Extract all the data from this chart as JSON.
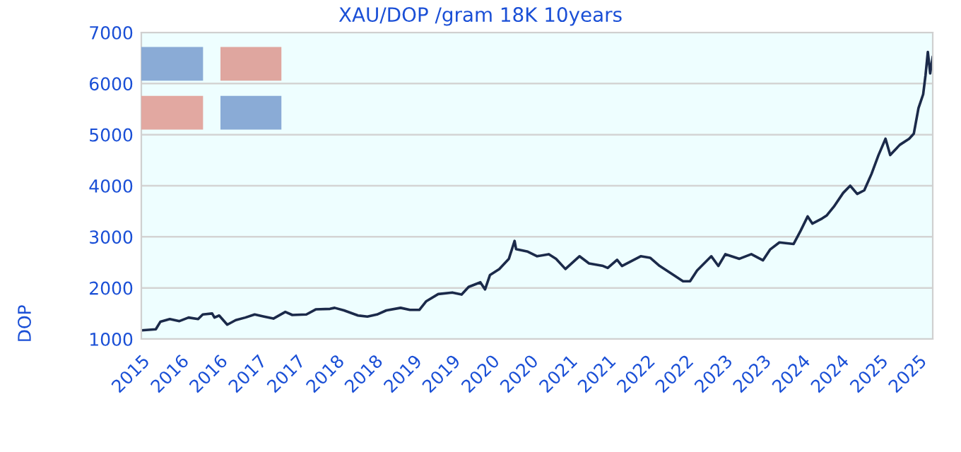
{
  "chart_data": {
    "type": "line",
    "title": "XAU/DOP /gram 18K 10years",
    "ylabel": "DOP",
    "x": [
      "2015-07-02",
      "2015-09-07",
      "2015-09-29",
      "2015-11-12",
      "2015-12-27",
      "2016-02-08",
      "2016-03-24",
      "2016-04-15",
      "2016-05-29",
      "2016-06-09",
      "2016-07-01",
      "2016-08-08",
      "2016-09-17",
      "2016-11-01",
      "2016-12-15",
      "2017-01-28",
      "2017-03-13",
      "2017-05-08",
      "2017-06-10",
      "2017-08-15",
      "2017-09-28",
      "2017-12-04",
      "2017-12-26",
      "2018-02-08",
      "2018-04-15",
      "2018-05-29",
      "2018-07-13",
      "2018-08-26",
      "2018-11-01",
      "2018-12-15",
      "2019-01-28",
      "2019-03-02",
      "2019-04-27",
      "2019-07-02",
      "2019-08-15",
      "2019-09-17",
      "2019-11-11",
      "2019-12-03",
      "2019-12-26",
      "2020-02-08",
      "2020-03-24",
      "2020-04-20",
      "2020-04-27",
      "2020-06-21",
      "2020-08-04",
      "2020-09-28",
      "2020-11-01",
      "2020-12-15",
      "2021-02-19",
      "2021-04-05",
      "2021-06-10",
      "2021-07-02",
      "2021-08-15",
      "2021-09-07",
      "2021-12-04",
      "2022-01-17",
      "2022-03-03",
      "2022-05-08",
      "2022-06-21",
      "2022-07-24",
      "2022-08-26",
      "2022-11-01",
      "2022-12-04",
      "2023-01-06",
      "2023-03-13",
      "2023-05-08",
      "2023-07-02",
      "2023-08-04",
      "2023-09-17",
      "2023-11-23",
      "2023-12-26",
      "2024-01-28",
      "2024-02-19",
      "2024-04-05",
      "2024-04-27",
      "2024-05-30",
      "2024-07-13",
      "2024-08-15",
      "2024-09-17",
      "2024-10-20",
      "2024-11-23",
      "2024-12-26",
      "2025-01-28",
      "2025-02-19",
      "2025-04-05",
      "2025-05-19",
      "2025-06-10",
      "2025-07-02",
      "2025-07-24",
      "2025-08-04",
      "2025-08-15",
      "2025-08-26",
      "2025-09-07"
    ],
    "series": [
      {
        "color": "#1b2a4a",
        "values": [
          1170,
          1190,
          1340,
          1390,
          1350,
          1420,
          1390,
          1480,
          1500,
          1420,
          1460,
          1280,
          1370,
          1420,
          1480,
          1440,
          1400,
          1530,
          1470,
          1480,
          1580,
          1590,
          1610,
          1560,
          1460,
          1440,
          1480,
          1560,
          1610,
          1570,
          1570,
          1740,
          1880,
          1910,
          1870,
          2020,
          2110,
          1970,
          2250,
          2370,
          2570,
          2920,
          2760,
          2710,
          2620,
          2660,
          2570,
          2370,
          2620,
          2480,
          2430,
          2390,
          2550,
          2430,
          2620,
          2590,
          2430,
          2250,
          2130,
          2130,
          2340,
          2620,
          2430,
          2660,
          2570,
          2660,
          2540,
          2750,
          2890,
          2860,
          3120,
          3400,
          3260,
          3360,
          3420,
          3590,
          3860,
          4000,
          3840,
          3910,
          4230,
          4600,
          4920,
          4600,
          4800,
          4920,
          5020,
          5520,
          5790,
          6160,
          6620,
          6200,
          6530
        ]
      }
    ],
    "xlim": [
      "2015-07-01",
      "2025-09-07"
    ],
    "xticks": [
      {
        "value": "2015-07-01",
        "label": "2015"
      },
      {
        "value": "2016-01-01",
        "label": "2016"
      },
      {
        "value": "2016-07-01",
        "label": "2016"
      },
      {
        "value": "2017-01-01",
        "label": "2017"
      },
      {
        "value": "2017-07-01",
        "label": "2017"
      },
      {
        "value": "2018-01-01",
        "label": "2018"
      },
      {
        "value": "2018-07-01",
        "label": "2018"
      },
      {
        "value": "2019-01-01",
        "label": "2019"
      },
      {
        "value": "2019-07-01",
        "label": "2019"
      },
      {
        "value": "2020-01-01",
        "label": "2020"
      },
      {
        "value": "2020-07-01",
        "label": "2020"
      },
      {
        "value": "2021-01-01",
        "label": "2021"
      },
      {
        "value": "2021-07-01",
        "label": "2021"
      },
      {
        "value": "2022-01-01",
        "label": "2022"
      },
      {
        "value": "2022-07-01",
        "label": "2022"
      },
      {
        "value": "2023-01-01",
        "label": "2023"
      },
      {
        "value": "2023-07-01",
        "label": "2023"
      },
      {
        "value": "2024-01-01",
        "label": "2024"
      },
      {
        "value": "2024-07-01",
        "label": "2024"
      },
      {
        "value": "2025-01-01",
        "label": "2025"
      },
      {
        "value": "2025-07-01",
        "label": "2025"
      }
    ],
    "ylim": [
      1000,
      7000
    ],
    "yticks": [
      1000,
      2000,
      3000,
      4000,
      5000,
      6000,
      7000
    ],
    "grid": "y",
    "marker": "none",
    "line_style": "solid"
  }
}
